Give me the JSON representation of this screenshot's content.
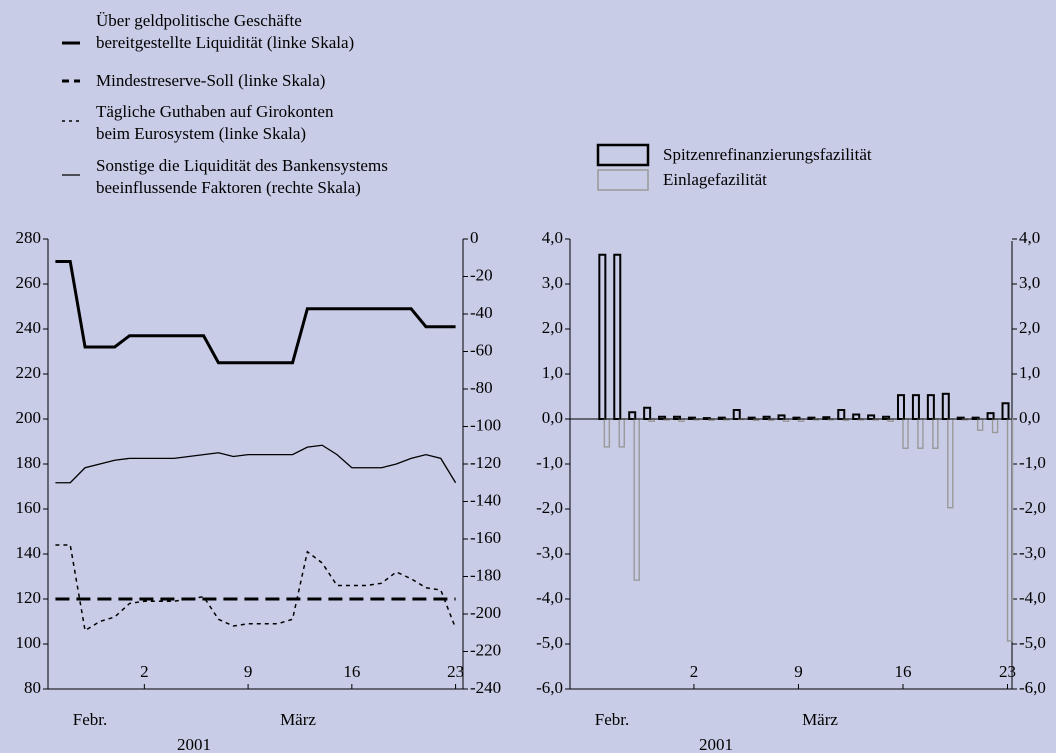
{
  "chart_data": [
    {
      "type": "line",
      "x": [
        -4,
        -3,
        -2,
        -1,
        0,
        1,
        2,
        3,
        4,
        5,
        6,
        7,
        8,
        9,
        10,
        11,
        12,
        13,
        14,
        15,
        16,
        17,
        18,
        19,
        20,
        21,
        22,
        23
      ],
      "xlim": [
        -4.5,
        23.5
      ],
      "xticks": [
        2,
        9,
        16,
        23
      ],
      "x_period_labels": [
        "Febr.",
        "März"
      ],
      "x_year_label": "2001",
      "ylim": [
        80,
        280
      ],
      "yticks": [
        80,
        100,
        120,
        140,
        160,
        180,
        200,
        220,
        240,
        260,
        280
      ],
      "y2lim": [
        -240,
        0
      ],
      "y2ticks": [
        -240,
        -220,
        -200,
        -180,
        -160,
        -140,
        -120,
        -100,
        -80,
        -60,
        -40,
        -20,
        0
      ],
      "series": [
        {
          "name": "Über geldpolitische Geschäfte\nbereitgestellte Liquidität (linke Skala)",
          "color": "#000000",
          "style": "thick",
          "values": [
            270,
            270,
            232,
            232,
            232,
            237,
            237,
            237,
            237,
            237,
            237,
            225,
            225,
            225,
            225,
            225,
            225,
            249,
            249,
            249,
            249,
            249,
            249,
            249,
            249,
            241,
            241,
            241
          ]
        },
        {
          "name": "Mindestreserve-Soll (linke Skala)",
          "color": "#000000",
          "style": "dashed",
          "values": [
            120,
            120,
            120,
            120,
            120,
            120,
            120,
            120,
            120,
            120,
            120,
            120,
            120,
            120,
            120,
            120,
            120,
            120,
            120,
            120,
            120,
            120,
            120,
            120,
            120,
            120,
            120,
            120
          ]
        },
        {
          "name": "Tägliche Guthaben auf Girokonten\nbeim Eurosystem (linke Skala)",
          "color": "#000000",
          "style": "dotted",
          "values": [
            144,
            144,
            106,
            110,
            112,
            118,
            119,
            119,
            119,
            120,
            121,
            111,
            108,
            109,
            109,
            109,
            111,
            141,
            136,
            126,
            126,
            126,
            127,
            132,
            129,
            125,
            124,
            107
          ]
        },
        {
          "name": "Sonstige die Liquidität des Bankensystems\nbeeinflussende Faktoren (rechte Skala)",
          "color": "#000000",
          "style": "thin",
          "axis": "y2",
          "values": [
            -130,
            -130,
            -122,
            -120,
            -118,
            -117,
            -117,
            -117,
            -117,
            -116,
            -115,
            -114,
            -116,
            -115,
            -115,
            -115,
            -115,
            -111,
            -110,
            -115,
            -122,
            -122,
            -122,
            -120,
            -117,
            -115,
            -117,
            -130
          ]
        }
      ]
    },
    {
      "type": "bar",
      "x": [
        -4,
        -3,
        -2,
        -1,
        0,
        1,
        2,
        3,
        4,
        5,
        6,
        7,
        8,
        9,
        10,
        11,
        12,
        13,
        14,
        15,
        16,
        17,
        18,
        19,
        20,
        21,
        22,
        23
      ],
      "xlim": [
        -6.3,
        23.3
      ],
      "xticks": [
        2,
        9,
        16,
        23
      ],
      "x_period_labels": [
        "Febr.",
        "März"
      ],
      "x_year_label": "2001",
      "ylim": [
        -6,
        4
      ],
      "yticks": [
        {
          "value": -6,
          "label": "-6,0"
        },
        {
          "value": -5,
          "label": "-5,0"
        },
        {
          "value": -4,
          "label": "-4,0"
        },
        {
          "value": -3,
          "label": "-3,0"
        },
        {
          "value": -2,
          "label": "-2,0"
        },
        {
          "value": -1,
          "label": "-1,0"
        },
        {
          "value": 0,
          "label": "0,0"
        },
        {
          "value": 1,
          "label": "1,0"
        },
        {
          "value": 2,
          "label": "2,0"
        },
        {
          "value": 3,
          "label": "3,0"
        },
        {
          "value": 4,
          "label": "4,0"
        }
      ],
      "y2lim": [
        -6,
        4
      ],
      "y2ticks": [
        {
          "value": -6,
          "label": "-6,0"
        },
        {
          "value": -5,
          "label": "-5,0"
        },
        {
          "value": -4,
          "label": "-4,0"
        },
        {
          "value": -3,
          "label": "-3,0"
        },
        {
          "value": -2,
          "label": "-2,0"
        },
        {
          "value": -1,
          "label": "-1,0"
        },
        {
          "value": 0,
          "label": "0,0"
        },
        {
          "value": 1,
          "label": "1,0"
        },
        {
          "value": 2,
          "label": "2,0"
        },
        {
          "value": 3,
          "label": "3,0"
        },
        {
          "value": 4,
          "label": "4,0"
        }
      ],
      "series": [
        {
          "name": "Spitzenrefinanzierungsfazilität",
          "color": "#000000",
          "values": [
            3.65,
            3.65,
            0.15,
            0.25,
            0.05,
            0.05,
            0.03,
            0.02,
            0.03,
            0.2,
            0.03,
            0.05,
            0.08,
            0.03,
            0.03,
            0.04,
            0.2,
            0.1,
            0.08,
            0.05,
            0.53,
            0.53,
            0.53,
            0.56,
            0.03,
            0.03,
            0.13,
            0.35
          ]
        },
        {
          "name": "Einlagefazilität",
          "color": "#999999",
          "values": [
            -0.62,
            -0.62,
            -3.58,
            -0.05,
            -0.02,
            -0.05,
            -0.02,
            -0.03,
            -0.02,
            -0.01,
            -0.03,
            -0.03,
            -0.05,
            -0.05,
            -0.02,
            -0.02,
            -0.03,
            -0.02,
            -0.02,
            -0.05,
            -0.65,
            -0.65,
            -0.65,
            -1.97,
            -0.02,
            -0.25,
            -0.3,
            -4.93
          ]
        }
      ]
    }
  ]
}
